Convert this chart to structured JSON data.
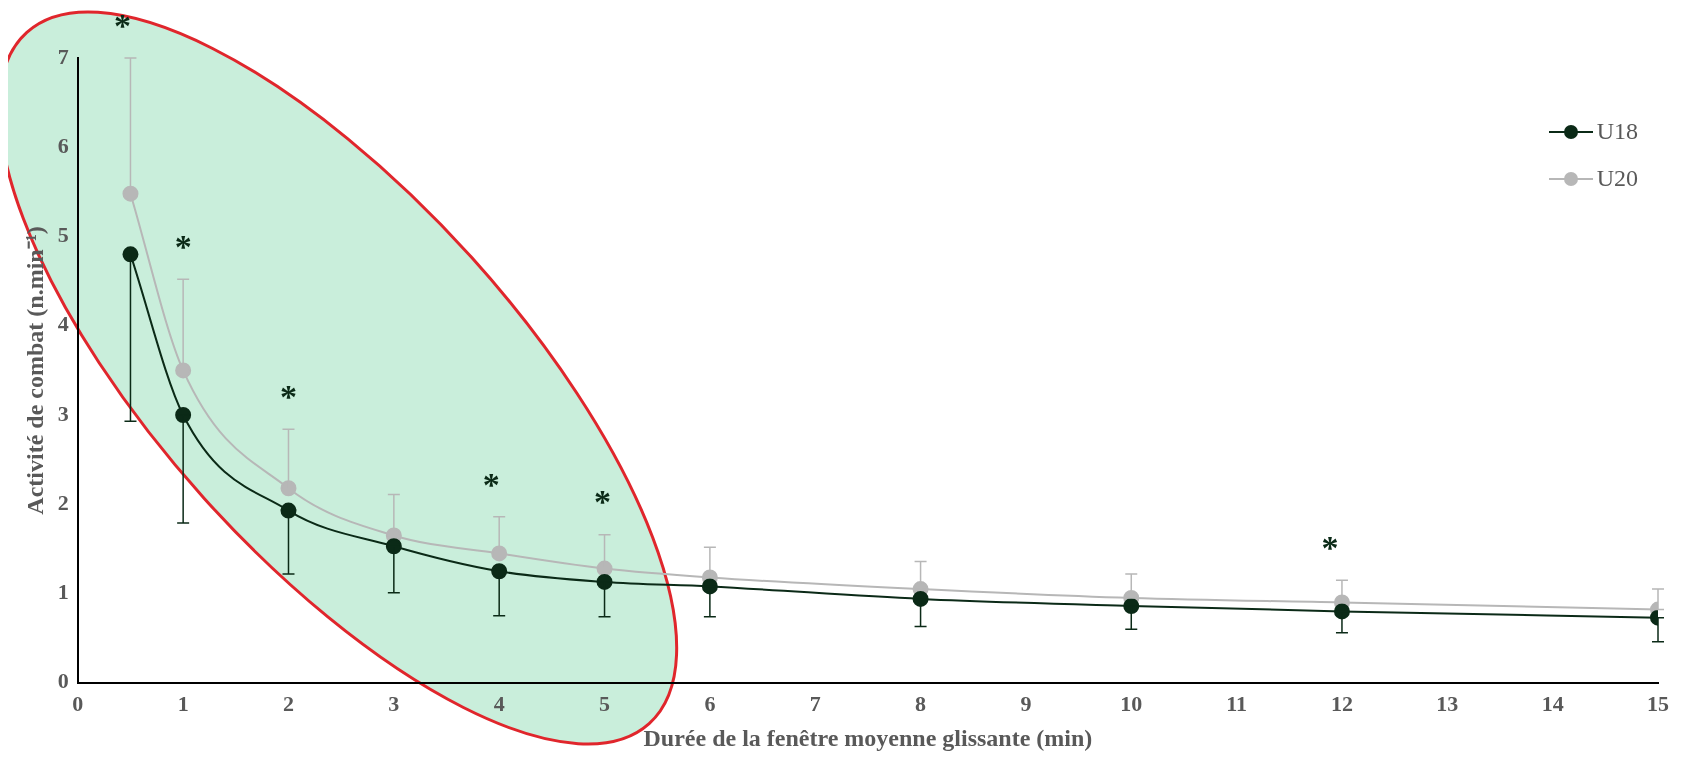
{
  "chart_data": {
    "type": "line",
    "xlabel": "Durée de la fenêtre moyenne glissante (min)",
    "ylabel": "Activité de combat (n.min⁻¹)",
    "x": [
      0.5,
      1,
      2,
      3,
      4,
      5,
      6,
      8,
      10,
      12,
      15
    ],
    "series": [
      {
        "name": "U18",
        "color": "#0b2a17",
        "values": [
          4.8,
          3.0,
          1.93,
          1.53,
          1.25,
          1.13,
          1.08,
          0.94,
          0.86,
          0.8,
          0.73
        ],
        "errors": [
          [
            2.93,
            4.8
          ],
          [
            1.79,
            3.0
          ],
          [
            1.22,
            1.93
          ],
          [
            1.01,
            1.53
          ],
          [
            0.75,
            1.25
          ],
          [
            0.74,
            1.13
          ],
          [
            0.74,
            1.08
          ],
          [
            0.63,
            0.94
          ],
          [
            0.6,
            0.86
          ],
          [
            0.56,
            0.8
          ],
          [
            0.46,
            0.73
          ]
        ]
      },
      {
        "name": "U20",
        "color": "#b7b7b7",
        "values": [
          5.48,
          3.5,
          2.18,
          1.65,
          1.45,
          1.28,
          1.18,
          1.05,
          0.95,
          0.9,
          0.82
        ],
        "errors": [
          [
            5.48,
            7.0
          ],
          [
            3.5,
            4.52
          ],
          [
            2.18,
            2.84
          ],
          [
            1.65,
            2.11
          ],
          [
            1.45,
            1.86
          ],
          [
            1.28,
            1.66
          ],
          [
            1.18,
            1.52
          ],
          [
            1.05,
            1.36
          ],
          [
            0.95,
            1.22
          ],
          [
            0.9,
            1.15
          ],
          [
            0.82,
            1.05
          ]
        ]
      }
    ],
    "xlim": [
      0,
      15
    ],
    "xticks": [
      0,
      1,
      2,
      3,
      4,
      5,
      6,
      7,
      8,
      9,
      10,
      11,
      12,
      13,
      14,
      15
    ],
    "ylim": [
      0,
      7
    ],
    "yticks": [
      0,
      1,
      2,
      3,
      4,
      5,
      6,
      7
    ],
    "annotations": [
      "*",
      "*",
      "*",
      "*",
      "*",
      "*"
    ],
    "grid": false,
    "legend": "top right",
    "marker": "circle",
    "line_style": "solid"
  }
}
